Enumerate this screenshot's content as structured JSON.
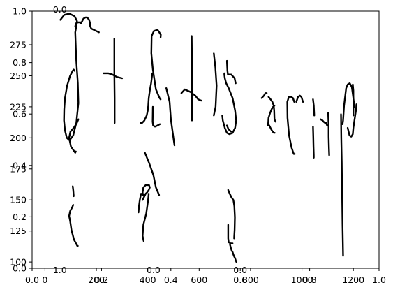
{
  "chart_data": {
    "type": "line",
    "title": "",
    "xlabel": "",
    "ylabel": "",
    "grid": false,
    "legend": "none",
    "colors": {
      "ink": "#000000",
      "background": "#ffffff"
    },
    "axes": {
      "data": {
        "xlim": [
          -50,
          1300
        ],
        "ylim": [
          95,
          302
        ],
        "xticks": [
          0,
          200,
          400,
          600,
          800,
          1000,
          1200
        ],
        "xtick_labels": [
          "0",
          "200",
          "400",
          "600",
          "800",
          "1000",
          "1200"
        ],
        "yticks": [
          100,
          125,
          150,
          175,
          200,
          225,
          250,
          275
        ],
        "ytick_labels": [
          "100",
          "125",
          "150",
          "175",
          "200",
          "225",
          "250",
          "275"
        ]
      },
      "unit": {
        "xlim": [
          0,
          1
        ],
        "ylim": [
          0,
          1
        ],
        "xticks": [
          0,
          0.2,
          0.4,
          0.6,
          0.8,
          1.0
        ],
        "xtick_labels": [
          "0.0",
          "0.2",
          "0.4",
          "0.6",
          "0.8",
          "1.0"
        ],
        "yticks": [
          0,
          0.2,
          0.4,
          0.6,
          0.8,
          1.0
        ],
        "ytick_labels": [
          "0.0",
          "0.2",
          "0.4",
          "0.6",
          "0.8",
          "1.0"
        ]
      },
      "extra_labels": [
        {
          "text": "0.0",
          "x": 0.08,
          "y": 1.0
        },
        {
          "text": "1.0",
          "x": 0.08,
          "y": 0.0
        },
        {
          "text": "0.0",
          "x": 0.35,
          "y": 0.0
        },
        {
          "text": "0.0",
          "x": 0.6,
          "y": 0.0
        }
      ]
    },
    "strokes": [
      {
        "x": [
          60,
          75,
          95,
          115,
          125,
          118
        ],
        "y": [
          295,
          299,
          300,
          298,
          294,
          290
        ]
      },
      {
        "x": [
          140,
          125,
          118,
          122,
          128,
          130,
          122,
          110,
          96,
          85,
          78,
          74,
          75,
          78,
          86,
          98,
          108,
          112,
          115
        ],
        "y": [
          293,
          293,
          285,
          262,
          244,
          228,
          212,
          202,
          198,
          200,
          206,
          214,
          223,
          232,
          242,
          250,
          254,
          255,
          254
        ]
      },
      {
        "x": [
          140,
          150,
          158,
          164,
          172,
          176,
          176,
          180,
          190,
          200,
          210
        ],
        "y": [
          292,
          296,
          297,
          297,
          295,
          292,
          290,
          288,
          287,
          286,
          285
        ]
      },
      {
        "x": [
          130,
          124,
          112,
          99,
          94,
          101,
          118,
          120
        ],
        "y": [
          215,
          212,
          208,
          205,
          200,
          193,
          188,
          189
        ]
      },
      {
        "x": [
          110,
          106,
          98,
          94,
          98,
          103,
          113,
          126,
          128
        ],
        "y": [
          146,
          144,
          141,
          137,
          133,
          126,
          118,
          113,
          113
        ]
      },
      {
        "x": [
          108,
          110,
          112
        ],
        "y": [
          161,
          158,
          153
        ]
      },
      {
        "x": [
          270,
          270,
          271,
          271
        ],
        "y": [
          280,
          252,
          232,
          212
        ]
      },
      {
        "x": [
          228,
          246,
          262,
          280,
          300
        ],
        "y": [
          252,
          252,
          251,
          249,
          248
        ]
      },
      {
        "x": [
          450,
          451,
          445,
          438,
          424,
          415,
          414,
          420,
          432,
          446,
          450
        ],
        "y": [
          281,
          283,
          285,
          287,
          286,
          282,
          268,
          255,
          239,
          232,
          231
        ]
      },
      {
        "x": [
          420,
          419,
          421,
          428,
          438,
          447
        ],
        "y": [
          225,
          213,
          210,
          209,
          210,
          211
        ]
      },
      {
        "x": [
          418,
          416,
          413,
          408,
          404,
          402,
          400,
          396,
          387,
          378,
          372
        ],
        "y": [
          252,
          249,
          244,
          238,
          232,
          226,
          222,
          218,
          214,
          212,
          212
        ]
      },
      {
        "x": [
          472,
          485,
          490,
          502,
          504
        ],
        "y": [
          240,
          229,
          215,
          197,
          194
        ]
      },
      {
        "x": [
          374,
          369,
          366,
          364
        ],
        "y": [
          155,
          150,
          145,
          140
        ]
      },
      {
        "x": [
          380,
          392,
          397,
          404,
          408,
          405,
          392,
          383,
          380,
          382
        ],
        "y": [
          150,
          155,
          156,
          158,
          160,
          162,
          162,
          160,
          156,
          154
        ]
      },
      {
        "x": [
          389,
          405,
          422,
          432,
          444
        ],
        "y": [
          188,
          180,
          170,
          160,
          154
        ]
      },
      {
        "x": [
          404,
          401,
          394,
          383,
          380,
          384
        ],
        "y": [
          155,
          149,
          139,
          130,
          121,
          117
        ]
      },
      {
        "x": [
          571,
          572,
          572,
          572
        ],
        "y": [
          282,
          262,
          234,
          214
        ]
      },
      {
        "x": [
          531,
          544,
          566,
          585,
          596,
          608
        ],
        "y": [
          236,
          239,
          237,
          234,
          231,
          230
        ]
      },
      {
        "x": [
          657,
          663,
          668,
          664,
          657
        ],
        "y": [
          268,
          257,
          242,
          225,
          218
        ]
      },
      {
        "x": [
          708,
          710,
          712,
          718,
          725,
          738,
          742
        ],
        "y": [
          262,
          254,
          251,
          251,
          251,
          248,
          244
        ]
      },
      {
        "x": [
          690,
          692,
          700,
          708,
          718,
          730,
          740,
          744,
          740,
          730,
          715,
          705,
          700,
          698,
          698
        ],
        "y": [
          218,
          214,
          208,
          204,
          203,
          204,
          208,
          214,
          222,
          232,
          240,
          244,
          248,
          251,
          252
        ]
      },
      {
        "x": [
          708,
          714,
          724
        ],
        "y": [
          210,
          207,
          205
        ]
      },
      {
        "x": [
          713,
          719,
          726,
          733,
          737,
          739,
          738,
          736
        ],
        "y": [
          158,
          155,
          152,
          150,
          145,
          136,
          126,
          119
        ]
      },
      {
        "x": [
          713,
          713,
          715,
          722,
          730
        ],
        "y": [
          130,
          119,
          116,
          115,
          115
        ]
      },
      {
        "x": [
          720,
          724,
          727,
          730,
          735,
          740,
          743,
          745
        ],
        "y": [
          114,
          111,
          109,
          108,
          105,
          103,
          101,
          100
        ]
      },
      {
        "x": [
          843,
          852,
          858,
          863
        ],
        "y": [
          232,
          234,
          236,
          236
        ]
      },
      {
        "x": [
          868,
          870,
          876,
          882,
          888,
          893
        ],
        "y": [
          210,
          216,
          220,
          223,
          225,
          226
        ]
      },
      {
        "x": [
          870,
          878,
          885,
          890,
          892,
          893,
          895,
          898
        ],
        "y": [
          233,
          231,
          229,
          226,
          222,
          215,
          214,
          213
        ]
      },
      {
        "x": [
          873,
          880,
          886,
          891,
          894
        ],
        "y": [
          210,
          207,
          205,
          204,
          204
        ]
      },
      {
        "x": [
          970,
          965,
          958,
          949,
          943,
          944,
          950,
          960,
          968,
          972
        ],
        "y": [
          229,
          232,
          233,
          233,
          229,
          216,
          202,
          192,
          187,
          187
        ]
      },
      {
        "x": [
          978,
          985,
          992,
          998,
          1004
        ],
        "y": [
          229,
          233,
          234,
          233,
          229
        ]
      },
      {
        "x": [
          1043,
          1046,
          1048
        ],
        "y": [
          231,
          226,
          218
        ]
      },
      {
        "x": [
          1043,
          1044,
          1045,
          1046,
          1046
        ],
        "y": [
          209,
          201,
          193,
          186,
          184
        ]
      },
      {
        "x": [
          1072,
          1080,
          1084,
          1090,
          1094,
          1098
        ],
        "y": [
          215,
          214,
          213,
          212,
          212,
          210
        ]
      },
      {
        "x": [
          1102,
          1103,
          1104,
          1104,
          1105,
          1106
        ],
        "y": [
          220,
          214,
          208,
          201,
          192,
          186
        ]
      },
      {
        "x": [
          1152,
          1153,
          1155,
          1156,
          1158,
          1160
        ],
        "y": [
          219,
          200,
          180,
          160,
          130,
          105
        ]
      },
      {
        "x": [
          1158,
          1160,
          1162,
          1164,
          1168,
          1172,
          1178,
          1186,
          1194,
          1200,
          1204
        ],
        "y": [
          211,
          214,
          220,
          226,
          233,
          240,
          243,
          244,
          241,
          232,
          225
        ]
      },
      {
        "x": [
          1178,
          1185,
          1192,
          1198,
          1200,
          1205,
          1210,
          1212
        ],
        "y": [
          208,
          202,
          201,
          203,
          208,
          215,
          222,
          227
        ]
      },
      {
        "x": [
          1198,
          1200,
          1200,
          1200,
          1200
        ],
        "y": [
          243,
          238,
          232,
          225,
          218
        ]
      }
    ]
  }
}
